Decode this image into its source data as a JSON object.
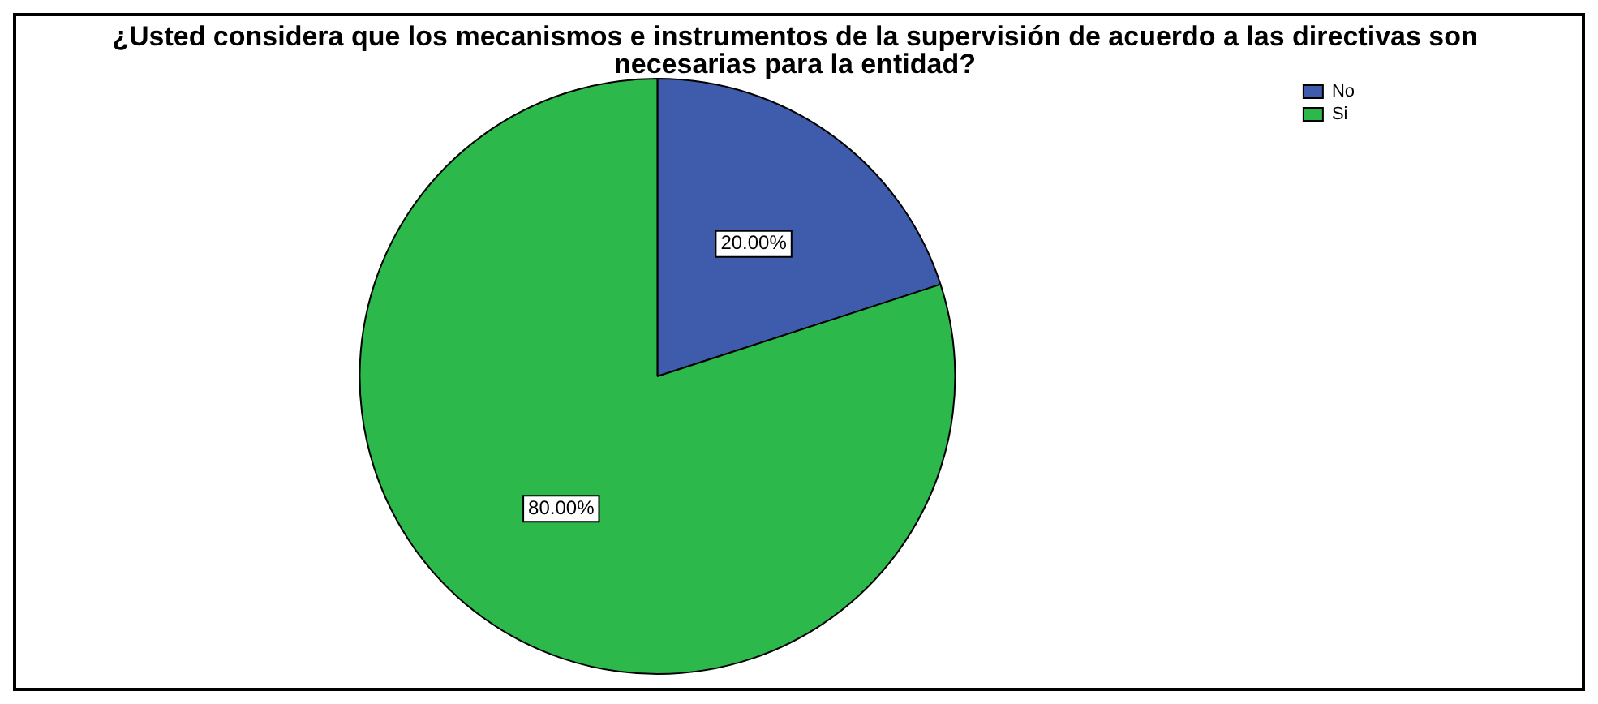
{
  "chart_data": {
    "type": "pie",
    "title": "¿Usted considera que los mecanismos e instrumentos de la supervisión de acuerdo a las directivas son necesarias para la entidad?",
    "categories": [
      "No",
      "Si"
    ],
    "values": [
      20,
      80
    ],
    "colors": [
      "#3f5bab",
      "#2db84b"
    ],
    "value_labels": [
      "20.00%",
      "80.00%"
    ],
    "legend": "top right"
  }
}
